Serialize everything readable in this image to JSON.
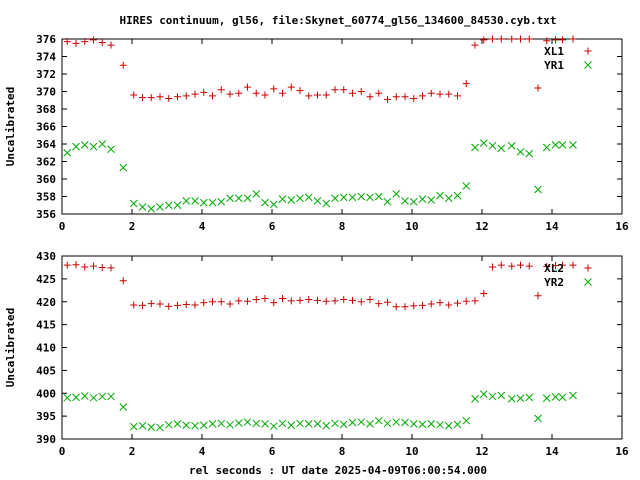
{
  "title": "HIRES continuum, gl56, file:Skynet_60774_gl56_134600_84530.cyb.txt",
  "xlabel": "rel seconds : UT date 2025-04-09T06:00:54.000",
  "colors": {
    "plus": "#cc0000",
    "cross": "#00aa00"
  },
  "chart_data": [
    {
      "type": "scatter",
      "ylabel": "Uncalibrated",
      "xlim": [
        0,
        16
      ],
      "ylim": [
        356,
        376
      ],
      "xticks": [
        "0",
        "2",
        "4",
        "6",
        "8",
        "10",
        "12",
        "14",
        "16"
      ],
      "yticks": [
        "356",
        "358",
        "360",
        "362",
        "364",
        "366",
        "368",
        "370",
        "372",
        "374",
        "376"
      ],
      "legend_placement": "top-right",
      "series": [
        {
          "name": "XL1",
          "marker": "plus",
          "x": [
            0.15,
            0.4,
            0.65,
            0.9,
            1.15,
            1.4,
            1.75,
            2.05,
            2.3,
            2.55,
            2.8,
            3.05,
            3.3,
            3.55,
            3.8,
            4.05,
            4.3,
            4.55,
            4.8,
            5.05,
            5.3,
            5.55,
            5.8,
            6.05,
            6.3,
            6.55,
            6.8,
            7.05,
            7.3,
            7.55,
            7.8,
            8.05,
            8.3,
            8.55,
            8.8,
            9.05,
            9.3,
            9.55,
            9.8,
            10.05,
            10.3,
            10.55,
            10.8,
            11.05,
            11.3,
            11.55,
            11.8,
            12.05,
            12.3,
            12.55,
            12.85,
            13.1,
            13.35,
            13.6,
            13.85,
            14.1,
            14.3,
            14.6
          ],
          "y": [
            375.7,
            375.5,
            375.7,
            375.9,
            375.6,
            375.3,
            373.0,
            369.6,
            369.3,
            369.3,
            369.4,
            369.2,
            369.4,
            369.5,
            369.7,
            369.9,
            369.5,
            370.2,
            369.7,
            369.8,
            370.5,
            369.8,
            369.6,
            370.3,
            369.8,
            370.5,
            370.1,
            369.5,
            369.6,
            369.6,
            370.2,
            370.2,
            369.8,
            370.0,
            369.4,
            369.8,
            369.1,
            369.4,
            369.4,
            369.2,
            369.5,
            369.8,
            369.7,
            369.7,
            369.5,
            370.9,
            375.3,
            375.9,
            376.0,
            376.0,
            376.0,
            376.0,
            376.0,
            370.4,
            375.8,
            375.9,
            375.9,
            376.0
          ],
          "xs_note": "",
          "_": ""
        },
        {
          "name": "YR1",
          "marker": "cross",
          "x": [
            0.15,
            0.4,
            0.65,
            0.9,
            1.15,
            1.4,
            1.75,
            2.05,
            2.3,
            2.55,
            2.8,
            3.05,
            3.3,
            3.55,
            3.8,
            4.05,
            4.3,
            4.55,
            4.8,
            5.05,
            5.3,
            5.55,
            5.8,
            6.05,
            6.3,
            6.55,
            6.8,
            7.05,
            7.3,
            7.55,
            7.8,
            8.05,
            8.3,
            8.55,
            8.8,
            9.05,
            9.3,
            9.55,
            9.8,
            10.05,
            10.3,
            10.55,
            10.8,
            11.05,
            11.3,
            11.55,
            11.8,
            12.05,
            12.3,
            12.55,
            12.85,
            13.1,
            13.35,
            13.6,
            13.85,
            14.1,
            14.3,
            14.6
          ],
          "y": [
            363.0,
            363.7,
            363.9,
            363.7,
            364.0,
            363.4,
            361.3,
            357.2,
            356.8,
            356.6,
            356.8,
            357.0,
            357.0,
            357.5,
            357.5,
            357.3,
            357.3,
            357.4,
            357.8,
            357.8,
            357.8,
            358.3,
            357.3,
            357.1,
            357.7,
            357.6,
            357.8,
            357.9,
            357.5,
            357.2,
            357.8,
            357.9,
            357.9,
            358.0,
            357.9,
            358.0,
            357.4,
            358.3,
            357.5,
            357.4,
            357.7,
            357.6,
            358.1,
            357.8,
            358.1,
            359.2,
            363.6,
            364.1,
            363.8,
            363.5,
            363.8,
            363.1,
            362.9,
            358.8,
            363.6,
            363.9,
            363.9,
            363.9
          ]
        }
      ]
    },
    {
      "type": "scatter",
      "ylabel": "Uncalibrated",
      "xlim": [
        0,
        16
      ],
      "ylim": [
        390,
        430
      ],
      "xticks": [
        "0",
        "2",
        "4",
        "6",
        "8",
        "10",
        "12",
        "14",
        "16"
      ],
      "yticks": [
        "390",
        "395",
        "400",
        "405",
        "410",
        "415",
        "420",
        "425",
        "430"
      ],
      "legend_placement": "top-right",
      "series": [
        {
          "name": "XL2",
          "marker": "plus",
          "x": [
            0.15,
            0.4,
            0.65,
            0.9,
            1.15,
            1.4,
            1.75,
            2.05,
            2.3,
            2.55,
            2.8,
            3.05,
            3.3,
            3.55,
            3.8,
            4.05,
            4.3,
            4.55,
            4.8,
            5.05,
            5.3,
            5.55,
            5.8,
            6.05,
            6.3,
            6.55,
            6.8,
            7.05,
            7.3,
            7.55,
            7.8,
            8.05,
            8.3,
            8.55,
            8.8,
            9.05,
            9.3,
            9.55,
            9.8,
            10.05,
            10.3,
            10.55,
            10.8,
            11.05,
            11.3,
            11.55,
            11.8,
            12.05,
            12.3,
            12.55,
            12.85,
            13.1,
            13.35,
            13.6,
            13.85,
            14.1,
            14.3,
            14.6
          ],
          "y": [
            428.0,
            428.1,
            427.6,
            427.8,
            427.5,
            427.4,
            424.6,
            419.3,
            419.2,
            419.6,
            419.5,
            419.0,
            419.2,
            419.4,
            419.3,
            419.8,
            420.0,
            420.0,
            419.5,
            420.2,
            420.1,
            420.5,
            420.7,
            419.8,
            420.7,
            420.2,
            420.3,
            420.5,
            420.3,
            420.1,
            420.2,
            420.5,
            420.3,
            420.0,
            420.5,
            419.6,
            419.9,
            418.9,
            418.9,
            419.1,
            419.2,
            419.5,
            419.8,
            419.3,
            419.7,
            420.1,
            420.2,
            421.8,
            427.6,
            428.0,
            427.8,
            428.0,
            427.8,
            421.3,
            427.7,
            427.9,
            428.0,
            428.0
          ]
        },
        {
          "name": "YR2",
          "marker": "cross",
          "x": [
            0.15,
            0.4,
            0.65,
            0.9,
            1.15,
            1.4,
            1.75,
            2.05,
            2.3,
            2.55,
            2.8,
            3.05,
            3.3,
            3.55,
            3.8,
            4.05,
            4.3,
            4.55,
            4.8,
            5.05,
            5.3,
            5.55,
            5.8,
            6.05,
            6.3,
            6.55,
            6.8,
            7.05,
            7.3,
            7.55,
            7.8,
            8.05,
            8.3,
            8.55,
            8.8,
            9.05,
            9.3,
            9.55,
            9.8,
            10.05,
            10.3,
            10.55,
            10.8,
            11.05,
            11.3,
            11.55,
            11.8,
            12.05,
            12.3,
            12.55,
            12.85,
            13.1,
            13.35,
            13.6,
            13.85,
            14.1,
            14.3,
            14.6
          ],
          "y": [
            399.0,
            399.1,
            399.4,
            399.0,
            399.3,
            399.3,
            397.0,
            392.7,
            392.9,
            392.6,
            392.5,
            393.1,
            393.3,
            393.0,
            392.9,
            393.0,
            393.3,
            393.4,
            393.1,
            393.5,
            393.7,
            393.4,
            393.3,
            392.8,
            393.4,
            393.0,
            393.4,
            393.3,
            393.3,
            392.9,
            393.4,
            393.2,
            393.6,
            393.7,
            393.3,
            394.0,
            393.4,
            393.7,
            393.6,
            393.3,
            393.2,
            393.3,
            393.1,
            392.9,
            393.2,
            394.0,
            398.8,
            399.8,
            399.3,
            399.5,
            398.8,
            398.9,
            399.1,
            394.5,
            398.9,
            399.2,
            399.1,
            399.5
          ]
        }
      ]
    }
  ]
}
